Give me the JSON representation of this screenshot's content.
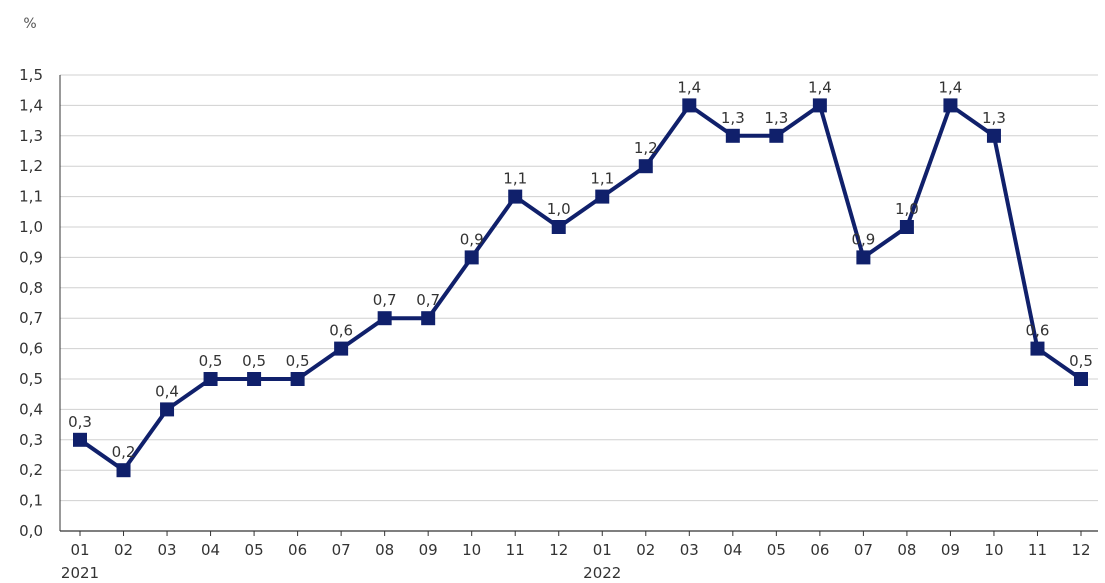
{
  "chart_data": {
    "type": "line",
    "unit_label": "%",
    "x": [
      "01",
      "02",
      "03",
      "04",
      "05",
      "06",
      "07",
      "08",
      "09",
      "10",
      "11",
      "12",
      "01",
      "02",
      "03",
      "04",
      "05",
      "06",
      "07",
      "08",
      "09",
      "10",
      "11",
      "12"
    ],
    "year_labels": [
      {
        "year": "2021",
        "at_index": 0
      },
      {
        "year": "2022",
        "at_index": 12
      }
    ],
    "series": [
      {
        "values": [
          0.3,
          0.2,
          0.4,
          0.5,
          0.5,
          0.5,
          0.6,
          0.7,
          0.7,
          0.9,
          1.1,
          1.0,
          1.1,
          1.2,
          1.4,
          1.3,
          1.3,
          1.4,
          0.9,
          1.0,
          1.4,
          1.3,
          0.6,
          0.5
        ],
        "data_labels": [
          "0,3",
          "0,2",
          "0,4",
          "0,5",
          "0,5",
          "0,5",
          "0,6",
          "0,7",
          "0,7",
          "0,9",
          "1,1",
          "1,0",
          "1,1",
          "1,2",
          "1,4",
          "1,3",
          "1,3",
          "1,4",
          "0,9",
          "1,0",
          "1,4",
          "1,3",
          "0,6",
          "0,5"
        ]
      }
    ],
    "y_ticks": [
      "0,0",
      "0,1",
      "0,2",
      "0,3",
      "0,4",
      "0,5",
      "0,6",
      "0,7",
      "0,8",
      "0,9",
      "1,0",
      "1,1",
      "1,2",
      "1,3",
      "1,4",
      "1,5"
    ],
    "ylim": [
      0,
      1.5
    ],
    "grid": true,
    "colors": {
      "line": "#10206b",
      "grid": "#d0d0d0",
      "axis": "#333333"
    }
  }
}
